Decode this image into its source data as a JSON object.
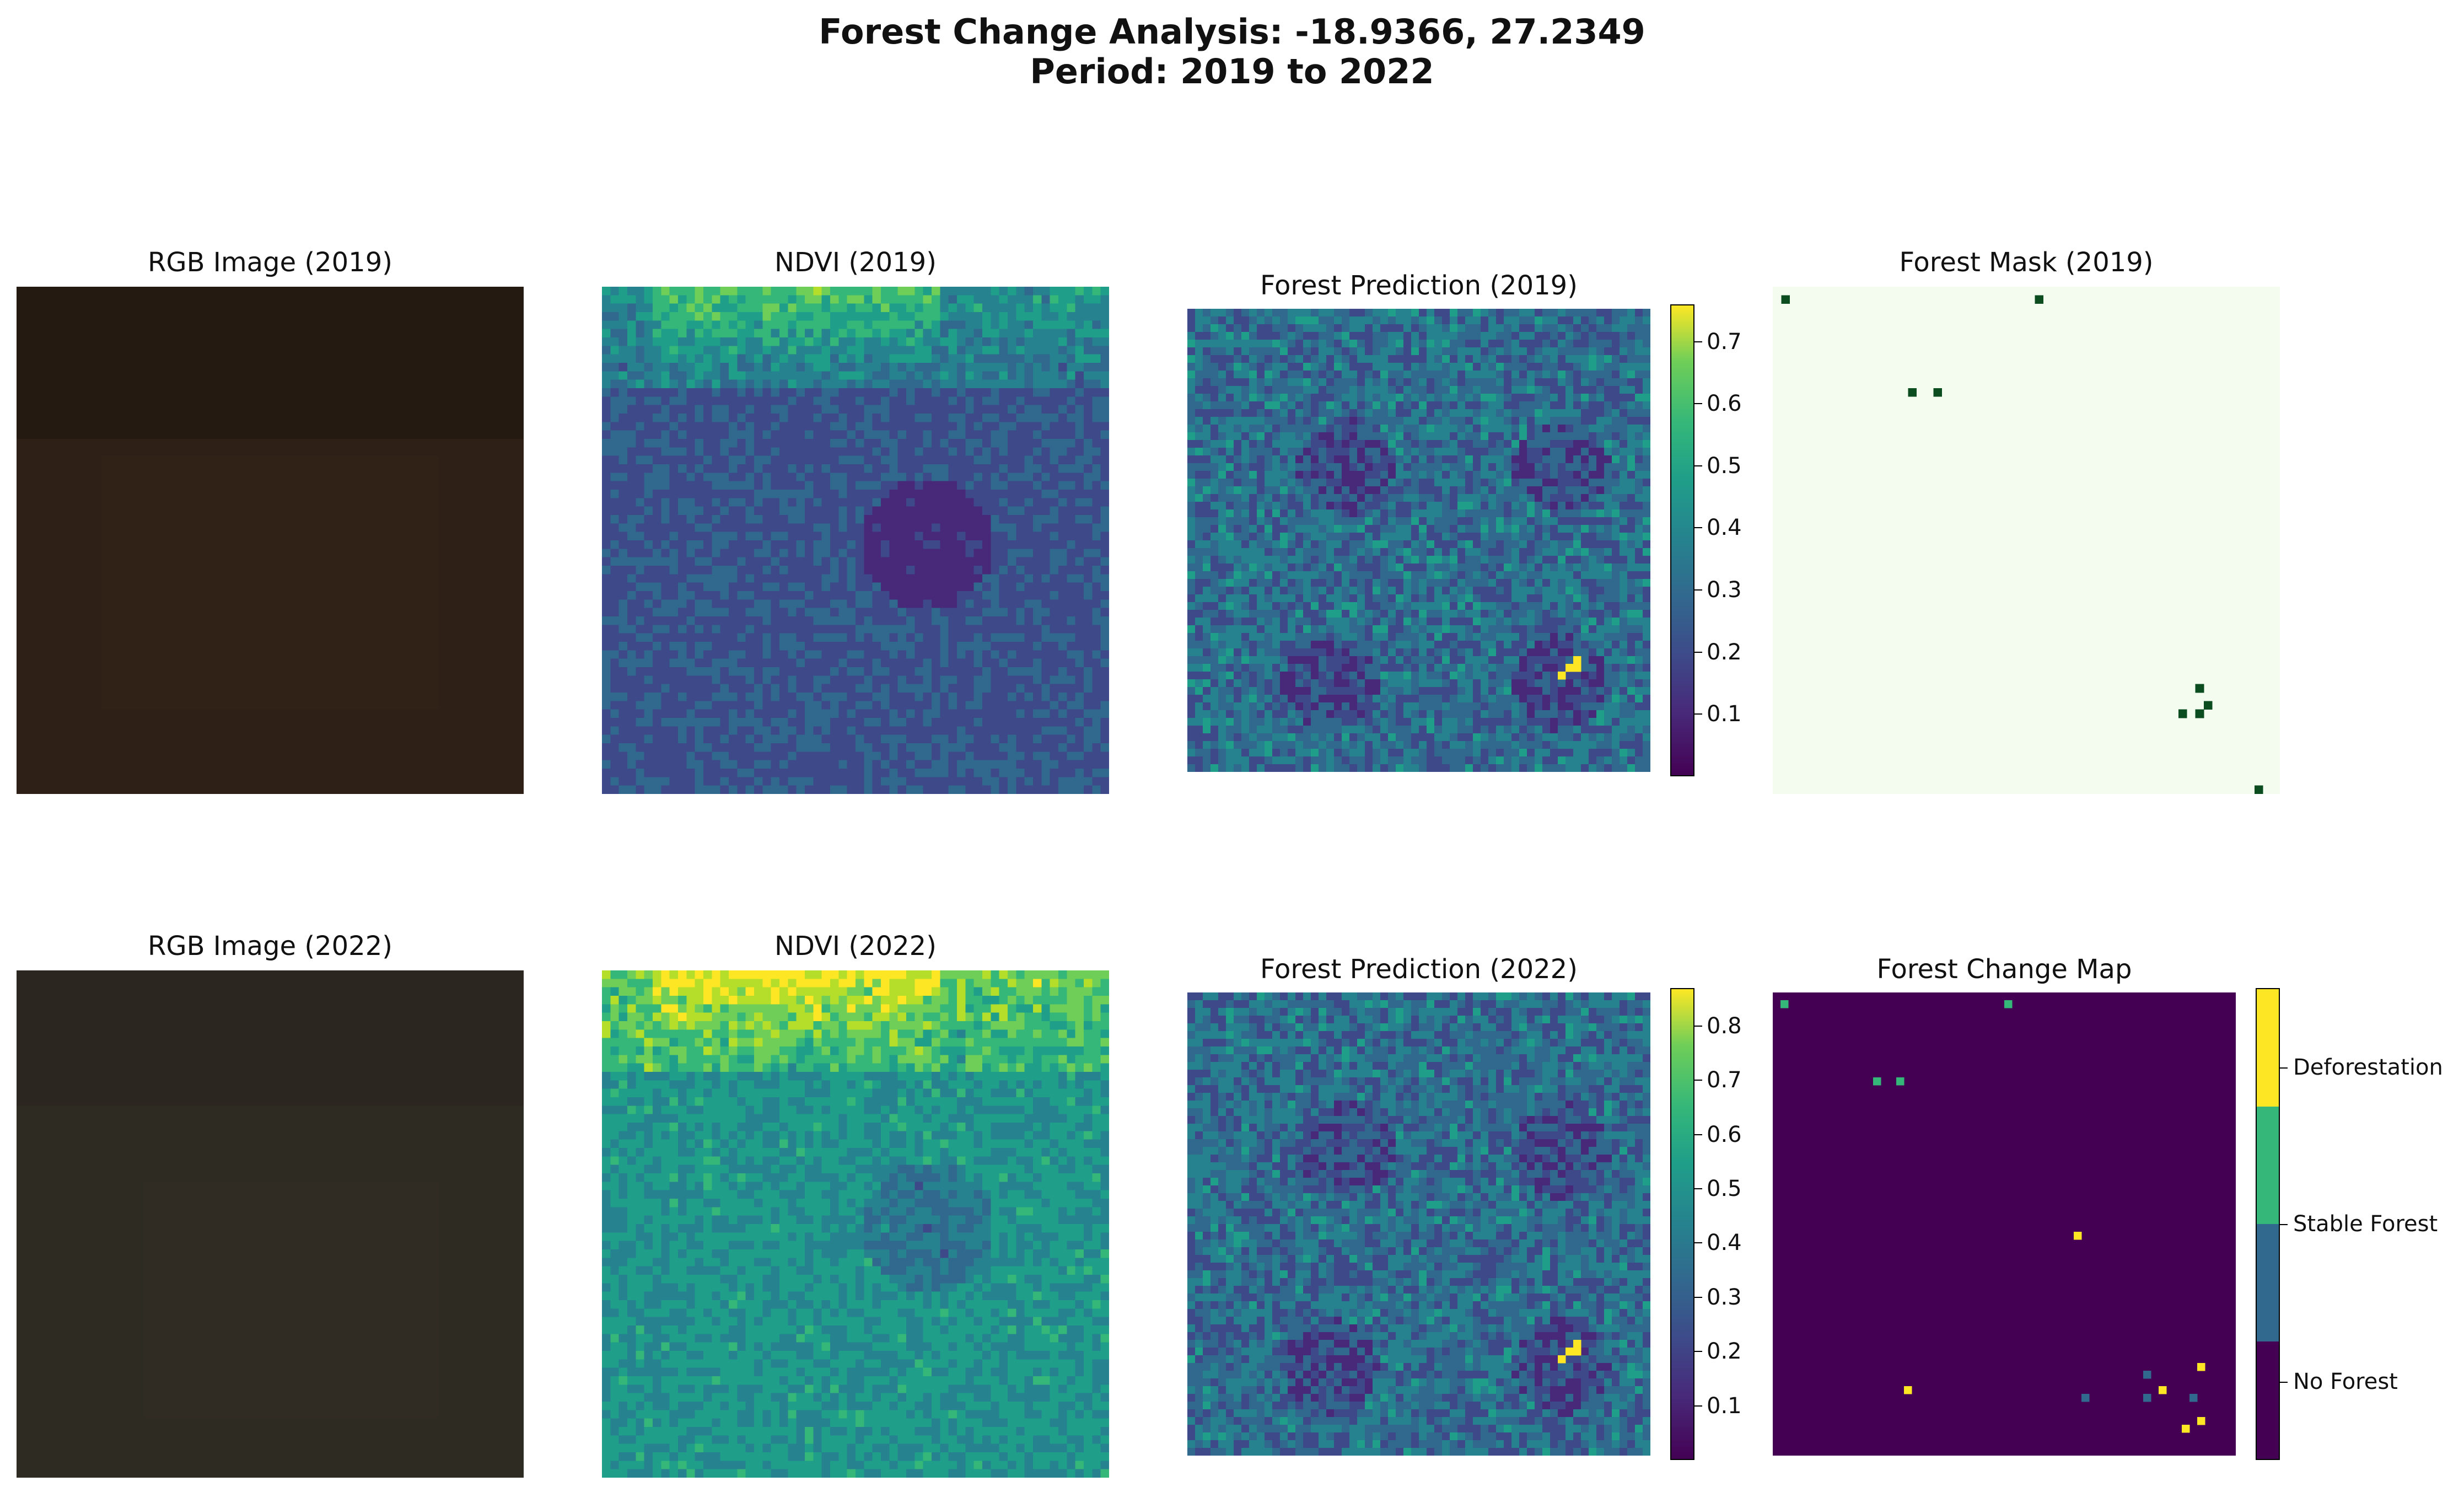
{
  "figure": {
    "title_line1": "Forest Change Analysis: -18.9366, 27.2349",
    "title_line2": "Period: 2019 to 2022"
  },
  "panels": {
    "rgb_2019": {
      "title": "RGB Image (2019)",
      "tone": "#2e2016"
    },
    "ndvi_2019": {
      "title": "NDVI (2019)"
    },
    "pred_2019": {
      "title": "Forest Prediction (2019)"
    },
    "mask_2019": {
      "title": "Forest Mask (2019)"
    },
    "rgb_2022": {
      "title": "RGB Image (2022)",
      "tone": "#2e2b22"
    },
    "ndvi_2022": {
      "title": "NDVI (2022)"
    },
    "pred_2022": {
      "title": "Forest Prediction (2022)"
    },
    "change_map": {
      "title": "Forest Change Map"
    }
  },
  "colorbars": {
    "pred_2019": {
      "ticks": [
        "0.1",
        "0.2",
        "0.3",
        "0.4",
        "0.5",
        "0.6",
        "0.7"
      ],
      "range": [
        0.0,
        0.76
      ]
    },
    "pred_2022": {
      "ticks": [
        "0.1",
        "0.2",
        "0.3",
        "0.4",
        "0.5",
        "0.6",
        "0.7",
        "0.8"
      ],
      "range": [
        0.0,
        0.87
      ]
    },
    "change_map": {
      "labels": [
        "No Forest",
        "Stable Forest",
        "Deforestation"
      ],
      "colors": [
        "#440154",
        "#31688e",
        "#35b779",
        "#fde725"
      ]
    }
  },
  "chart_data": {
    "type": "heatmap",
    "colormap": "viridis",
    "mask_2019_forest_pixels": 9,
    "change_map_categories": [
      "No Forest",
      "Stable Forest",
      "Deforestation"
    ]
  }
}
